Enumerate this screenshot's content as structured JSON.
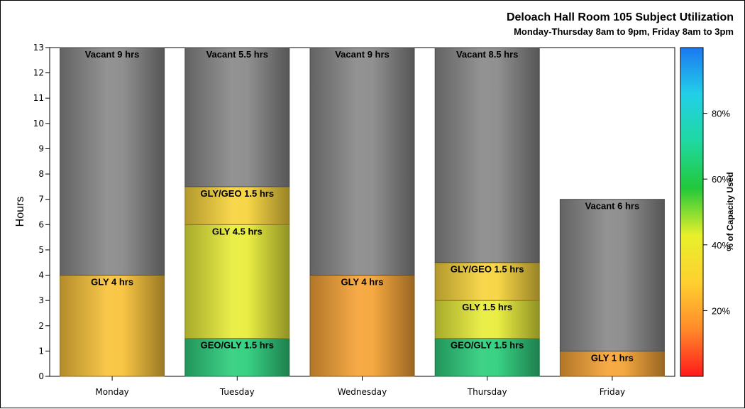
{
  "chart_data": {
    "type": "bar",
    "stacked": true,
    "title": "Deloach Hall Room 105 Subject Utilization",
    "subtitle": "Monday-Thursday 8am to 9pm, Friday 8am to 3pm",
    "xlabel": "",
    "ylabel": "Hours",
    "ylim": [
      0,
      13
    ],
    "yticks": [
      0,
      1,
      2,
      3,
      4,
      5,
      6,
      7,
      8,
      9,
      10,
      11,
      12,
      13
    ],
    "categories": [
      "Monday",
      "Tuesday",
      "Wednesday",
      "Thursday",
      "Friday"
    ],
    "bars": [
      {
        "category": "Monday",
        "segments": [
          {
            "label": "GLY 4 hrs",
            "value": 4,
            "color": "#f9c33b"
          },
          {
            "label": "Vacant 9 hrs",
            "value": 9,
            "color": "#8a8a8a"
          }
        ]
      },
      {
        "category": "Tuesday",
        "segments": [
          {
            "label": "GEO/GLY 1.5 hrs",
            "value": 1.5,
            "color": "#2fcf7e"
          },
          {
            "label": "GLY 4.5 hrs",
            "value": 4.5,
            "color": "#e8ec3a"
          },
          {
            "label": "GLY/GEO 1.5 hrs",
            "value": 1.5,
            "color": "#f7d43e"
          },
          {
            "label": "Vacant 5.5 hrs",
            "value": 5.5,
            "color": "#8a8a8a"
          }
        ]
      },
      {
        "category": "Wednesday",
        "segments": [
          {
            "label": "GLY 4 hrs",
            "value": 4,
            "color": "#f6a437"
          },
          {
            "label": "Vacant 9 hrs",
            "value": 9,
            "color": "#8a8a8a"
          }
        ]
      },
      {
        "category": "Thursday",
        "segments": [
          {
            "label": "GEO/GLY 1.5 hrs",
            "value": 1.5,
            "color": "#2fcf7e"
          },
          {
            "label": "GLY 1.5 hrs",
            "value": 1.5,
            "color": "#e8ec3a"
          },
          {
            "label": "GLY/GEO 1.5 hrs",
            "value": 1.5,
            "color": "#f7d43e"
          },
          {
            "label": "Vacant 8.5 hrs",
            "value": 8.5,
            "color": "#8a8a8a"
          }
        ]
      },
      {
        "category": "Friday",
        "segments": [
          {
            "label": "GLY 1 hrs",
            "value": 1,
            "color": "#f6a437"
          },
          {
            "label": "Vacant 6 hrs",
            "value": 6,
            "color": "#8a8a8a"
          }
        ]
      }
    ],
    "colorbar": {
      "title": "% of Capacity Used",
      "range": [
        0,
        100
      ],
      "ticks": [
        20,
        40,
        60,
        80
      ],
      "tick_labels": [
        "20%",
        "40%",
        "60%",
        "80%"
      ],
      "stops": [
        "#ff1a1a",
        "#ff8a2a",
        "#ffd030",
        "#e8f02a",
        "#22c83a",
        "#20d8a0",
        "#22d0e8",
        "#1c78f0"
      ]
    },
    "grid": false,
    "legend": "right colorbar"
  }
}
